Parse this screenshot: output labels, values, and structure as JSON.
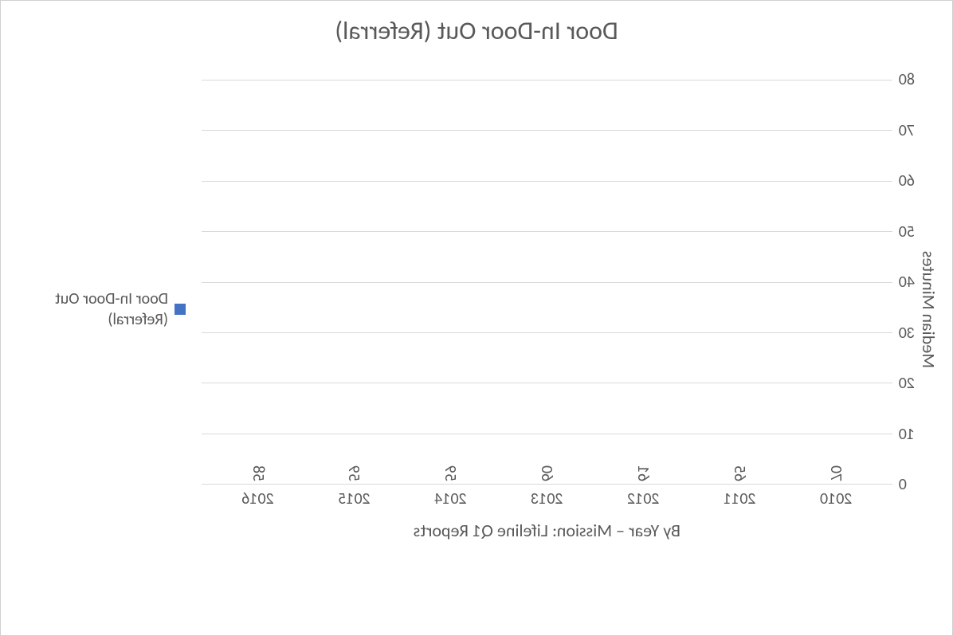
{
  "chart": {
    "type": "bar",
    "mirrored": true,
    "title": "Door In-Door Out (Referral)",
    "title_fontsize": 32,
    "y_axis_label": "Median Minutes",
    "x_axis_label": "By Year – Mission: Lifeline Q1 Reports",
    "label_fontsize": 22,
    "tick_fontsize": 20,
    "categories": [
      "2010",
      "2011",
      "2012",
      "2013",
      "2014",
      "2015",
      "2016"
    ],
    "values": [
      70,
      65,
      61,
      60,
      59,
      59,
      58
    ],
    "value_labels": [
      "70",
      "65",
      "61",
      "60",
      "59",
      "59",
      "58"
    ],
    "bar_color": "#4472c4",
    "bar_width": 0.55,
    "ylim": [
      0,
      80
    ],
    "ytick_step": 10,
    "yticks": [
      "80",
      "70",
      "60",
      "50",
      "40",
      "30",
      "20",
      "10",
      "0"
    ],
    "background_color": "#ffffff",
    "grid_color": "#d9d9d9",
    "border_color": "#d0d0d0",
    "text_color": "#595959",
    "legend": {
      "label": "Door In-Door Out (Referral)",
      "swatch_color": "#4472c4",
      "position": "right"
    }
  }
}
